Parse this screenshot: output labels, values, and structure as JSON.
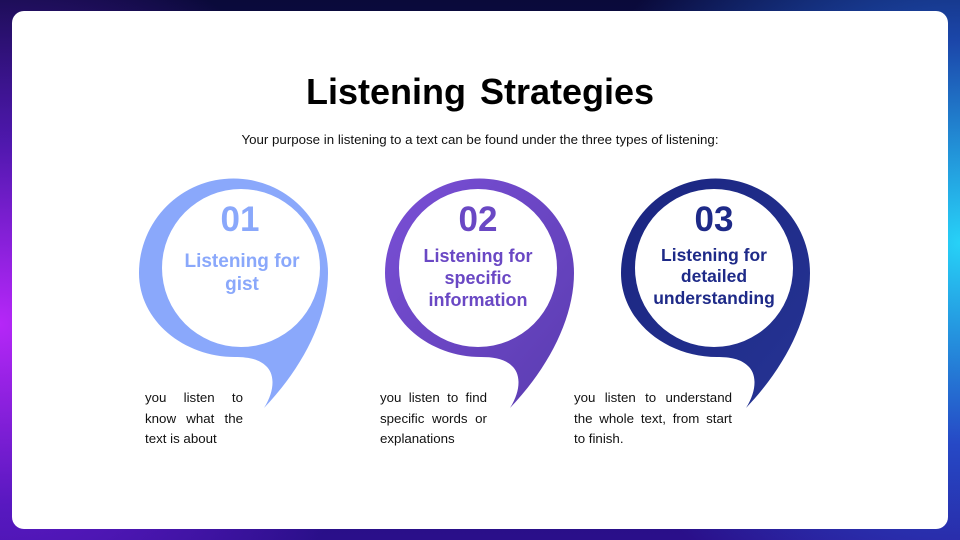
{
  "slide": {
    "title": "Listening Strategies",
    "subtitle": "Your purpose in listening to a text can be found under the three types of listening:"
  },
  "strategies": [
    {
      "number": "01",
      "label": "Listening for gist",
      "description": "you listen to know what the text is about",
      "color": "#8aa8fb"
    },
    {
      "number": "02",
      "label": "Listening for specific information",
      "description": "you listen to find specific words or explanations",
      "color": "#6a48c4"
    },
    {
      "number": "03",
      "label": "Listening for detailed understanding",
      "description": "you listen to understand the whole text, from start to finish.",
      "color": "#1e2a88"
    }
  ]
}
